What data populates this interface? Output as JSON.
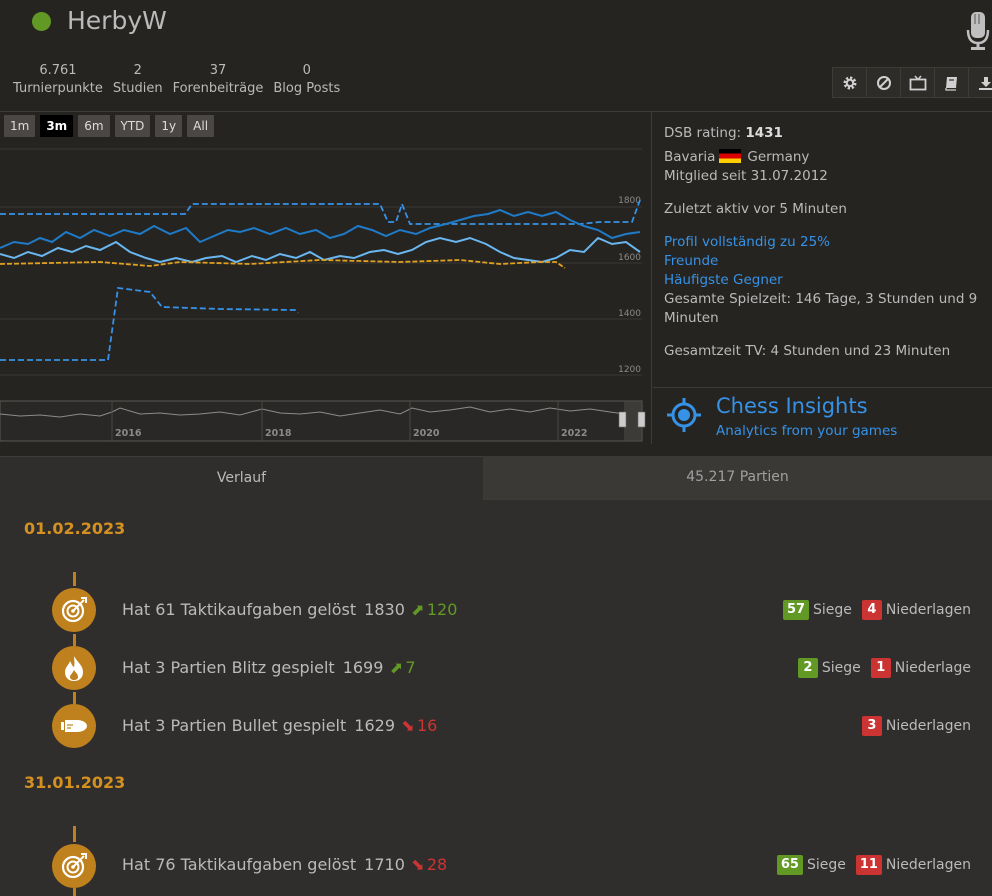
{
  "profile": {
    "username": "HerbyW",
    "online_color": "#629924",
    "stats": [
      {
        "value": "6.761",
        "label": "Turnierpunkte"
      },
      {
        "value": "2",
        "label": "Studien"
      },
      {
        "value": "37",
        "label": "Forenbeiträge"
      },
      {
        "value": "0",
        "label": "Blog Posts"
      }
    ],
    "tools": [
      "gear-icon",
      "block-icon",
      "tv-icon",
      "book-icon",
      "download-icon"
    ]
  },
  "chart": {
    "ranges": [
      "1m",
      "3m",
      "6m",
      "YTD",
      "1y",
      "All"
    ],
    "active_range": "3m",
    "y_ticks": [
      "1800",
      "1600",
      "1400",
      "1200"
    ],
    "nav_years": [
      "2016",
      "2018",
      "2020",
      "2022"
    ]
  },
  "side": {
    "dsb_label": "DSB rating:",
    "dsb_value": "1431",
    "region": "Bavaria",
    "country": "Germany",
    "member_since": "Mitglied seit 31.07.2012",
    "last_active": "Zuletzt aktiv vor 5 Minuten",
    "profile_complete": "Profil vollständig zu 25%",
    "friends": "Freunde",
    "frequent_opponents": "Häufigste Gegner",
    "playtime_line1": "Gesamte Spielzeit: 146 Tage, 3 Stunden und 9",
    "playtime_line2": "Minuten",
    "tv_time": "Gesamtzeit TV: 4 Stunden und 23 Minuten"
  },
  "insights": {
    "title": "Chess Insights",
    "subtitle": "Analytics from your games"
  },
  "tabs": {
    "history": "Verlauf",
    "games": "45.217 Partien"
  },
  "activity": {
    "dates": [
      "01.02.2023",
      "31.01.2023"
    ],
    "entries": [
      {
        "icon": "target-icon",
        "text": "Hat 61 Taktikaufgaben gelöst",
        "rating": "1830",
        "trend": "up",
        "delta": "120",
        "wins": "57",
        "wins_label": "Siege",
        "losses": "4",
        "losses_label": "Niederlagen"
      },
      {
        "icon": "fire-icon",
        "text": "Hat 3 Partien Blitz gespielt",
        "rating": "1699",
        "trend": "up",
        "delta": "7",
        "wins": "2",
        "wins_label": "Siege",
        "losses": "1",
        "losses_label": "Niederlage"
      },
      {
        "icon": "bullet-icon",
        "text": "Hat 3 Partien Bullet gespielt",
        "rating": "1629",
        "trend": "down",
        "delta": "16",
        "losses": "3",
        "losses_label": "Niederlagen"
      },
      {
        "icon": "target-icon",
        "text": "Hat 76 Taktikaufgaben gelöst",
        "rating": "1710",
        "trend": "down",
        "delta": "28",
        "wins": "65",
        "wins_label": "Siege",
        "losses": "11",
        "losses_label": "Niederlagen"
      }
    ]
  }
}
